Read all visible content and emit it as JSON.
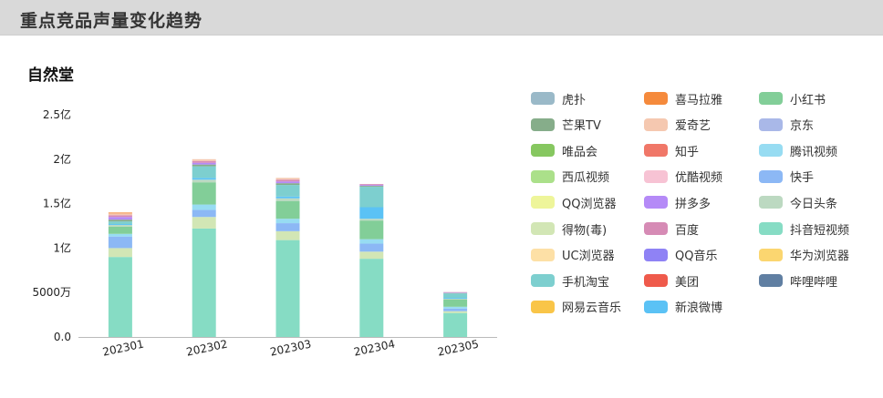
{
  "header": {
    "title": "重点竞品声量变化趋势"
  },
  "chart_data": {
    "type": "bar",
    "stacked": true,
    "title": "自然堂",
    "xlabel": "",
    "ylabel": "",
    "categories": [
      "202301",
      "202302",
      "202303",
      "202304",
      "202305"
    ],
    "y_ticks": [
      "0.0",
      "5000万",
      "1亿",
      "1.5亿",
      "2亿",
      "2.5亿"
    ],
    "ylim": [
      0,
      25000
    ],
    "unit": "万",
    "legend_position": "right",
    "grid": false,
    "series": [
      {
        "name": "抖音短视频",
        "color": "#86dcc4",
        "values": [
          9000,
          12200,
          10900,
          8800,
          2700
        ]
      },
      {
        "name": "得物(毒)",
        "color": "#d2e6b5",
        "values": [
          1000,
          1300,
          1000,
          800,
          200
        ]
      },
      {
        "name": "快手",
        "color": "#8cb8f5",
        "values": [
          1300,
          800,
          900,
          900,
          300
        ]
      },
      {
        "name": "腾讯视频",
        "color": "#97dcf2",
        "values": [
          300,
          600,
          500,
          500,
          200
        ]
      },
      {
        "name": "小红书",
        "color": "#82ce98",
        "values": [
          800,
          2500,
          2000,
          2100,
          800
        ]
      },
      {
        "name": "今日头条",
        "color": "#bcd9c1",
        "values": [
          200,
          300,
          300,
          200,
          100
        ]
      },
      {
        "name": "新浪微博",
        "color": "#5bc2f5",
        "values": [
          100,
          200,
          200,
          1300,
          100
        ]
      },
      {
        "name": "手机淘宝",
        "color": "#7dcfcf",
        "values": [
          300,
          1300,
          1300,
          2300,
          500
        ]
      },
      {
        "name": "芒果TV",
        "color": "#86ad8a",
        "values": [
          200,
          200,
          200,
          100,
          50
        ]
      },
      {
        "name": "拼多多",
        "color": "#b58af7",
        "values": [
          300,
          200,
          200,
          100,
          50
        ]
      },
      {
        "name": "百度",
        "color": "#d68bb5",
        "values": [
          200,
          200,
          200,
          100,
          50
        ]
      },
      {
        "name": "爱奇艺",
        "color": "#f5c8b0",
        "values": [
          200,
          200,
          200,
          0,
          0
        ]
      },
      {
        "name": "喜马拉雅",
        "color": "#f58a3c",
        "values": [
          100,
          0,
          0,
          0,
          0
        ]
      }
    ]
  },
  "legend": [
    {
      "label": "虎扑",
      "color": "#9ab9c8"
    },
    {
      "label": "喜马拉雅",
      "color": "#f58a3c"
    },
    {
      "label": "小红书",
      "color": "#82ce98"
    },
    {
      "label": "芒果TV",
      "color": "#86ad8a"
    },
    {
      "label": "爱奇艺",
      "color": "#f5c8b0"
    },
    {
      "label": "京东",
      "color": "#a9b8e8"
    },
    {
      "label": "唯品会",
      "color": "#86c760"
    },
    {
      "label": "知乎",
      "color": "#f07768"
    },
    {
      "label": "腾讯视频",
      "color": "#97dcf2"
    },
    {
      "label": "西瓜视频",
      "color": "#abe08a"
    },
    {
      "label": "优酷视频",
      "color": "#f7c3d4"
    },
    {
      "label": "快手",
      "color": "#8cb8f5"
    },
    {
      "label": "QQ浏览器",
      "color": "#eef59a"
    },
    {
      "label": "拼多多",
      "color": "#b58af7"
    },
    {
      "label": "今日头条",
      "color": "#bcd9c1"
    },
    {
      "label": "得物(毒)",
      "color": "#d2e6b5"
    },
    {
      "label": "百度",
      "color": "#d68bb5"
    },
    {
      "label": "抖音短视频",
      "color": "#86dcc4"
    },
    {
      "label": "UC浏览器",
      "color": "#fde0a6"
    },
    {
      "label": "QQ音乐",
      "color": "#8f82f5"
    },
    {
      "label": "华为浏览器",
      "color": "#fbd670"
    },
    {
      "label": "手机淘宝",
      "color": "#7dcfcf"
    },
    {
      "label": "美团",
      "color": "#ef5a4b"
    },
    {
      "label": "哔哩哔哩",
      "color": "#607fa2"
    },
    {
      "label": "网易云音乐",
      "color": "#f9c548"
    },
    {
      "label": "新浪微博",
      "color": "#5bc2f5"
    }
  ]
}
